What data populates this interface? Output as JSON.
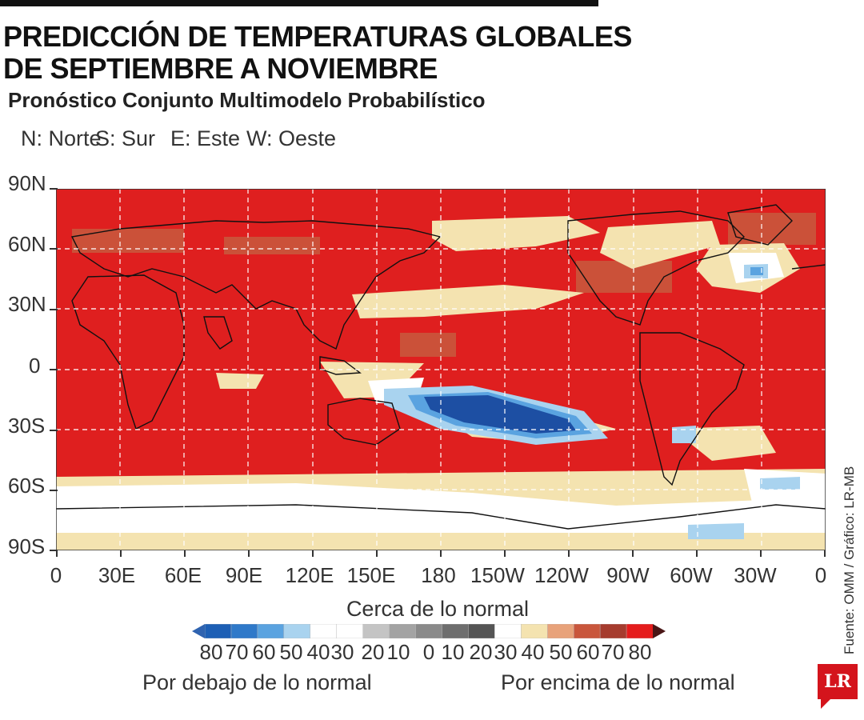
{
  "title": {
    "line1": "PREDICCIÓN DE TEMPERATURAS GLOBALES",
    "line2": "DE SEPTIEMBRE A NOVIEMBRE"
  },
  "subtitle": "Pronóstico Conjunto Multimodelo Probabilístico",
  "directions": {
    "north": "N: Norte",
    "south": "S: Sur",
    "east": "E: Este",
    "west": "W: Oeste"
  },
  "map": {
    "latitude_labels": [
      "90N",
      "60N",
      "30N",
      "0",
      "30S",
      "60S",
      "90S"
    ],
    "longitude_labels": [
      "0",
      "30E",
      "60E",
      "90E",
      "120E",
      "150E",
      "180",
      "150W",
      "120W",
      "90W",
      "60W",
      "30W",
      "0"
    ],
    "grid": "dashed",
    "background_color": "#df1f1f"
  },
  "colorbar": {
    "center_label": "Cerca de lo normal",
    "tick_labels": [
      "80",
      "70",
      "60",
      "50",
      "40",
      "30",
      "20",
      "10",
      "0",
      "10",
      "20",
      "30",
      "40",
      "50",
      "60",
      "70",
      "80"
    ],
    "below_label": "Por debajo de lo normal",
    "above_label": "Por encima de lo normal",
    "colors": [
      "#1d5fb5",
      "#2f79c9",
      "#5aa3e0",
      "#a9d3ef",
      "#ffffff",
      "#ffffff",
      "#c4c4c4",
      "#a3a3a3",
      "#8a8a8a",
      "#6e6e6e",
      "#555555",
      "#ffffff",
      "#f4e3b0",
      "#e8a27a",
      "#c9563c",
      "#a63c2e",
      "#e51c1c"
    ],
    "arrow_left_color": "#2f63b0",
    "arrow_right_color": "#4a1616"
  },
  "source": "Fuente: OMM / Gráfico: LR-MB",
  "logo": "LR"
}
